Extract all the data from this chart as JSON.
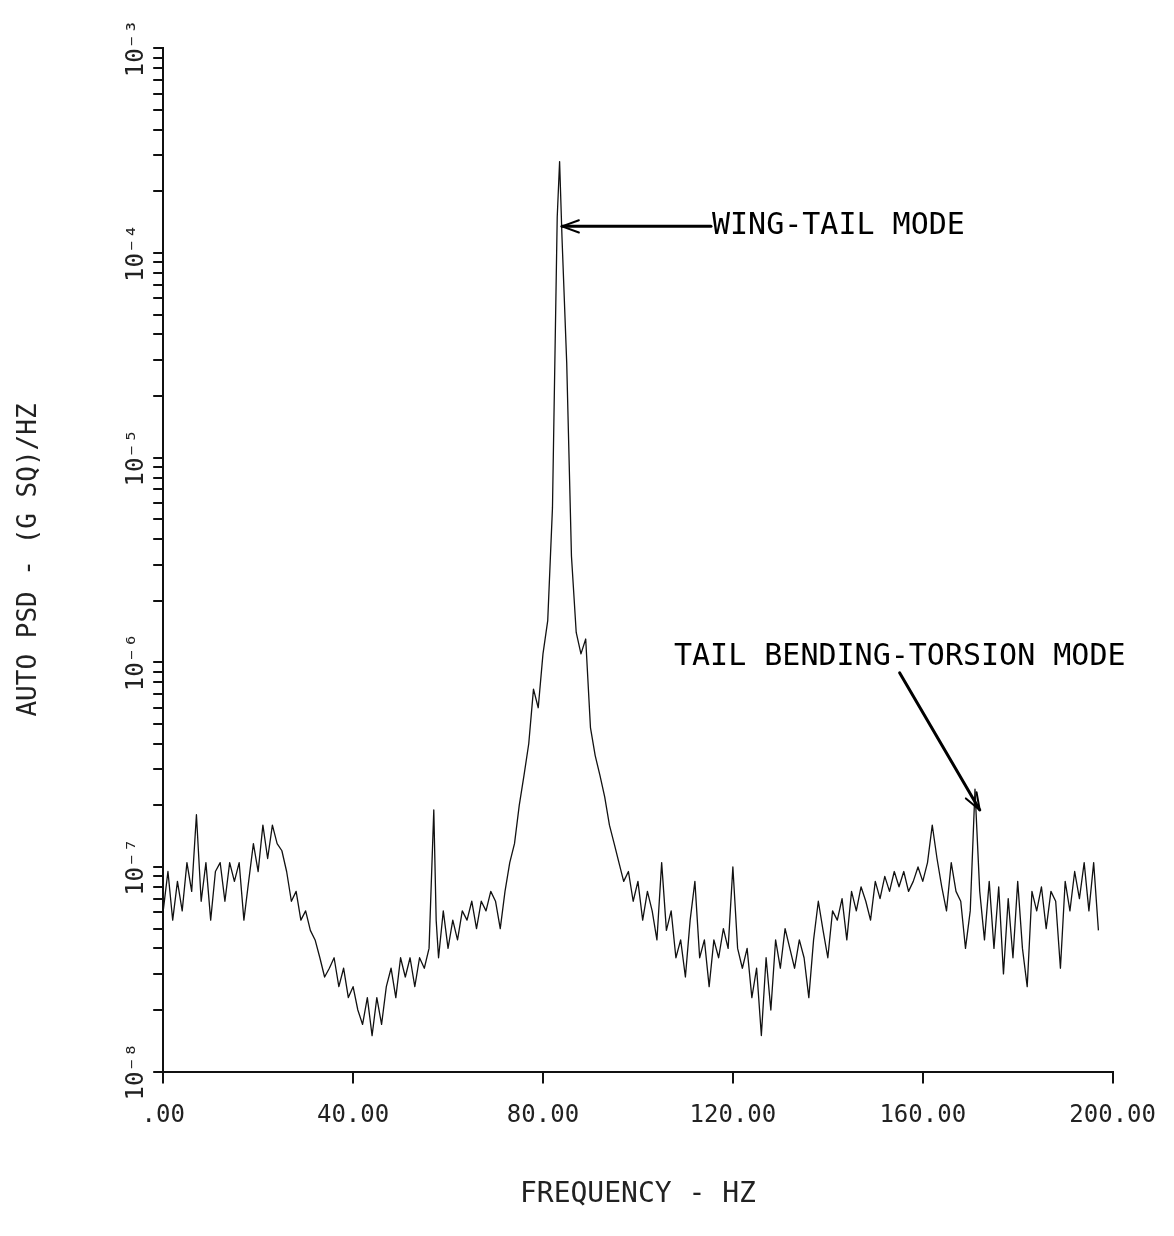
{
  "chart_data": {
    "type": "line",
    "xlabel": "FREQUENCY - HZ",
    "ylabel": "AUTO PSD - (G SQ)/HZ",
    "xlim": [
      0,
      200
    ],
    "xticks": [
      {
        "value": 0,
        "label": ".00"
      },
      {
        "value": 40,
        "label": "40.00"
      },
      {
        "value": 80,
        "label": "80.00"
      },
      {
        "value": 120,
        "label": "120.00"
      },
      {
        "value": 160,
        "label": "160.00"
      },
      {
        "value": 200,
        "label": "200.00"
      }
    ],
    "ylim": [
      1e-08,
      0.001
    ],
    "yticks": [
      {
        "value": 1e-08,
        "label": "10⁻⁸"
      },
      {
        "value": 2e-08,
        "label": null
      },
      {
        "value": 3e-08,
        "label": null
      },
      {
        "value": 4e-08,
        "label": null
      },
      {
        "value": 5e-08,
        "label": null
      },
      {
        "value": 6e-08,
        "label": null
      },
      {
        "value": 7e-08,
        "label": null
      },
      {
        "value": 8e-08,
        "label": null
      },
      {
        "value": 9e-08,
        "label": null
      },
      {
        "value": 1e-07,
        "label": "10⁻⁷"
      },
      {
        "value": 2e-07,
        "label": null
      },
      {
        "value": 3e-07,
        "label": null
      },
      {
        "value": 4e-07,
        "label": null
      },
      {
        "value": 5e-07,
        "label": null
      },
      {
        "value": 6e-07,
        "label": null
      },
      {
        "value": 7e-07,
        "label": null
      },
      {
        "value": 8e-07,
        "label": null
      },
      {
        "value": 9e-07,
        "label": null
      },
      {
        "value": 1e-06,
        "label": "10⁻⁶"
      },
      {
        "value": 2e-06,
        "label": null
      },
      {
        "value": 3e-06,
        "label": null
      },
      {
        "value": 4e-06,
        "label": null
      },
      {
        "value": 5e-06,
        "label": null
      },
      {
        "value": 6e-06,
        "label": null
      },
      {
        "value": 7e-06,
        "label": null
      },
      {
        "value": 8e-06,
        "label": null
      },
      {
        "value": 9e-06,
        "label": null
      },
      {
        "value": 1e-05,
        "label": "10⁻⁵"
      },
      {
        "value": 2e-05,
        "label": null
      },
      {
        "value": 3e-05,
        "label": null
      },
      {
        "value": 4e-05,
        "label": null
      },
      {
        "value": 5e-05,
        "label": null
      },
      {
        "value": 6e-05,
        "label": null
      },
      {
        "value": 7e-05,
        "label": null
      },
      {
        "value": 8e-05,
        "label": null
      },
      {
        "value": 9e-05,
        "label": null
      },
      {
        "value": 0.0001,
        "label": "10⁻⁴"
      },
      {
        "value": 0.0002,
        "label": null
      },
      {
        "value": 0.0003,
        "label": null
      },
      {
        "value": 0.0004,
        "label": null
      },
      {
        "value": 0.0005,
        "label": null
      },
      {
        "value": 0.0006,
        "label": null
      },
      {
        "value": 0.0007,
        "label": null
      },
      {
        "value": 0.0008,
        "label": null
      },
      {
        "value": 0.0009,
        "label": null
      },
      {
        "value": 0.001,
        "label": "10⁻³"
      }
    ],
    "log": "y",
    "grid": false,
    "legend": false,
    "marker": "none",
    "line_style": "solid",
    "annotations": [
      {
        "text": "WING-TAIL MODE",
        "x": 84,
        "y": 0.000135
      },
      {
        "text": "TAIL BENDING-TORSION MODE",
        "x": 172,
        "y": 1.9e-07
      }
    ],
    "series": [
      {
        "color": "#111111",
        "x": [
          0,
          1,
          2,
          3,
          4,
          5,
          6,
          7,
          8,
          9,
          10,
          11,
          12,
          13,
          14,
          15,
          16,
          17,
          18,
          19,
          20,
          21,
          22,
          23,
          24,
          25,
          26,
          27,
          28,
          29,
          30,
          31,
          32,
          33,
          34,
          35,
          36,
          37,
          38,
          39,
          40,
          41,
          42,
          43,
          44,
          45,
          46,
          47,
          48,
          49,
          50,
          51,
          52,
          53,
          54,
          55,
          56,
          57,
          57.5,
          58,
          59,
          60,
          61,
          62,
          63,
          64,
          65,
          66,
          67,
          68,
          69,
          70,
          71,
          72,
          73,
          74,
          75,
          76,
          77,
          78,
          79,
          80,
          81,
          82,
          83,
          83.5,
          84,
          85,
          86,
          87,
          88,
          89,
          90,
          91,
          92,
          93,
          94,
          95,
          96,
          97,
          98,
          99,
          100,
          101,
          102,
          103,
          104,
          105,
          106,
          107,
          108,
          109,
          110,
          111,
          112,
          113,
          114,
          115,
          116,
          117,
          118,
          119,
          120,
          121,
          122,
          123,
          124,
          125,
          126,
          127,
          128,
          129,
          130,
          131,
          132,
          133,
          134,
          135,
          136,
          137,
          138,
          139,
          140,
          141,
          142,
          143,
          144,
          145,
          146,
          147,
          148,
          149,
          150,
          151,
          152,
          153,
          154,
          155,
          156,
          157,
          158,
          159,
          160,
          161,
          162,
          163,
          164,
          165,
          166,
          167,
          168,
          169,
          170,
          171,
          172,
          173,
          174,
          175,
          176,
          177,
          178,
          179,
          180,
          181,
          182,
          183,
          184,
          185,
          186,
          187,
          188,
          189,
          190,
          191,
          192,
          193,
          194,
          195,
          196,
          197
        ],
        "values": [
          6.1e-08,
          9.5e-08,
          5.5e-08,
          8.5e-08,
          6.1e-08,
          1.05e-07,
          7.6e-08,
          1.8e-07,
          6.8e-08,
          1.05e-07,
          5.5e-08,
          9.5e-08,
          1.05e-07,
          6.8e-08,
          1.05e-07,
          8.5e-08,
          1.05e-07,
          5.5e-08,
          8.5e-08,
          1.3e-07,
          9.5e-08,
          1.6e-07,
          1.1e-07,
          1.6e-07,
          1.3e-07,
          1.2e-07,
          9.5e-08,
          6.8e-08,
          7.6e-08,
          5.5e-08,
          6.1e-08,
          4.9e-08,
          4.4e-08,
          3.6e-08,
          2.9e-08,
          3.2e-08,
          3.6e-08,
          2.6e-08,
          3.2e-08,
          2.3e-08,
          2.6e-08,
          2e-08,
          1.7e-08,
          2.3e-08,
          1.5e-08,
          2.3e-08,
          1.7e-08,
          2.6e-08,
          3.2e-08,
          2.3e-08,
          3.6e-08,
          2.9e-08,
          3.6e-08,
          2.6e-08,
          3.6e-08,
          3.2e-08,
          4e-08,
          1.9e-07,
          5.5e-08,
          3.6e-08,
          6.1e-08,
          4e-08,
          5.5e-08,
          4.4e-08,
          6.1e-08,
          5.5e-08,
          6.8e-08,
          5e-08,
          6.8e-08,
          6.1e-08,
          7.6e-08,
          6.8e-08,
          5e-08,
          7.6e-08,
          1.05e-07,
          1.3e-07,
          2e-07,
          2.8e-07,
          4e-07,
          7.4e-07,
          6e-07,
          1.1e-06,
          1.6e-06,
          5.7e-06,
          0.00015,
          0.00028,
          0.00012,
          2.9e-05,
          3.3e-06,
          1.4e-06,
          1.1e-06,
          1.3e-06,
          4.8e-07,
          3.5e-07,
          2.8e-07,
          2.2e-07,
          1.6e-07,
          1.3e-07,
          1.05e-07,
          8.5e-08,
          9.5e-08,
          6.8e-08,
          8.5e-08,
          5.5e-08,
          7.6e-08,
          6.1e-08,
          4.4e-08,
          1.05e-07,
          4.9e-08,
          6.1e-08,
          3.6e-08,
          4.4e-08,
          2.9e-08,
          5.5e-08,
          8.5e-08,
          3.6e-08,
          4.4e-08,
          2.6e-08,
          4.4e-08,
          3.6e-08,
          5e-08,
          4e-08,
          1e-07,
          4e-08,
          3.2e-08,
          4e-08,
          2.3e-08,
          3.2e-08,
          1.5e-08,
          3.6e-08,
          2e-08,
          4.4e-08,
          3.2e-08,
          5e-08,
          4e-08,
          3.2e-08,
          4.4e-08,
          3.6e-08,
          2.3e-08,
          4.4e-08,
          6.8e-08,
          4.9e-08,
          3.6e-08,
          6.1e-08,
          5.5e-08,
          7e-08,
          4.4e-08,
          7.6e-08,
          6.1e-08,
          8e-08,
          6.8e-08,
          5.5e-08,
          8.5e-08,
          7e-08,
          9e-08,
          7.6e-08,
          9.5e-08,
          8e-08,
          9.5e-08,
          7.6e-08,
          8.5e-08,
          1e-07,
          8.5e-08,
          1.05e-07,
          1.6e-07,
          1.1e-07,
          8e-08,
          6.1e-08,
          1.05e-07,
          7.6e-08,
          6.8e-08,
          4e-08,
          6.1e-08,
          2.4e-07,
          7.6e-08,
          4.4e-08,
          8.5e-08,
          4e-08,
          8e-08,
          3e-08,
          7e-08,
          3.6e-08,
          8.5e-08,
          4e-08,
          2.6e-08,
          7.6e-08,
          6.1e-08,
          8e-08,
          5e-08,
          7.6e-08,
          6.8e-08,
          3.2e-08,
          8.5e-08,
          6.1e-08,
          9.5e-08,
          7e-08,
          1.05e-07,
          6.1e-08,
          1.05e-07,
          4.9e-08
        ]
      }
    ]
  }
}
